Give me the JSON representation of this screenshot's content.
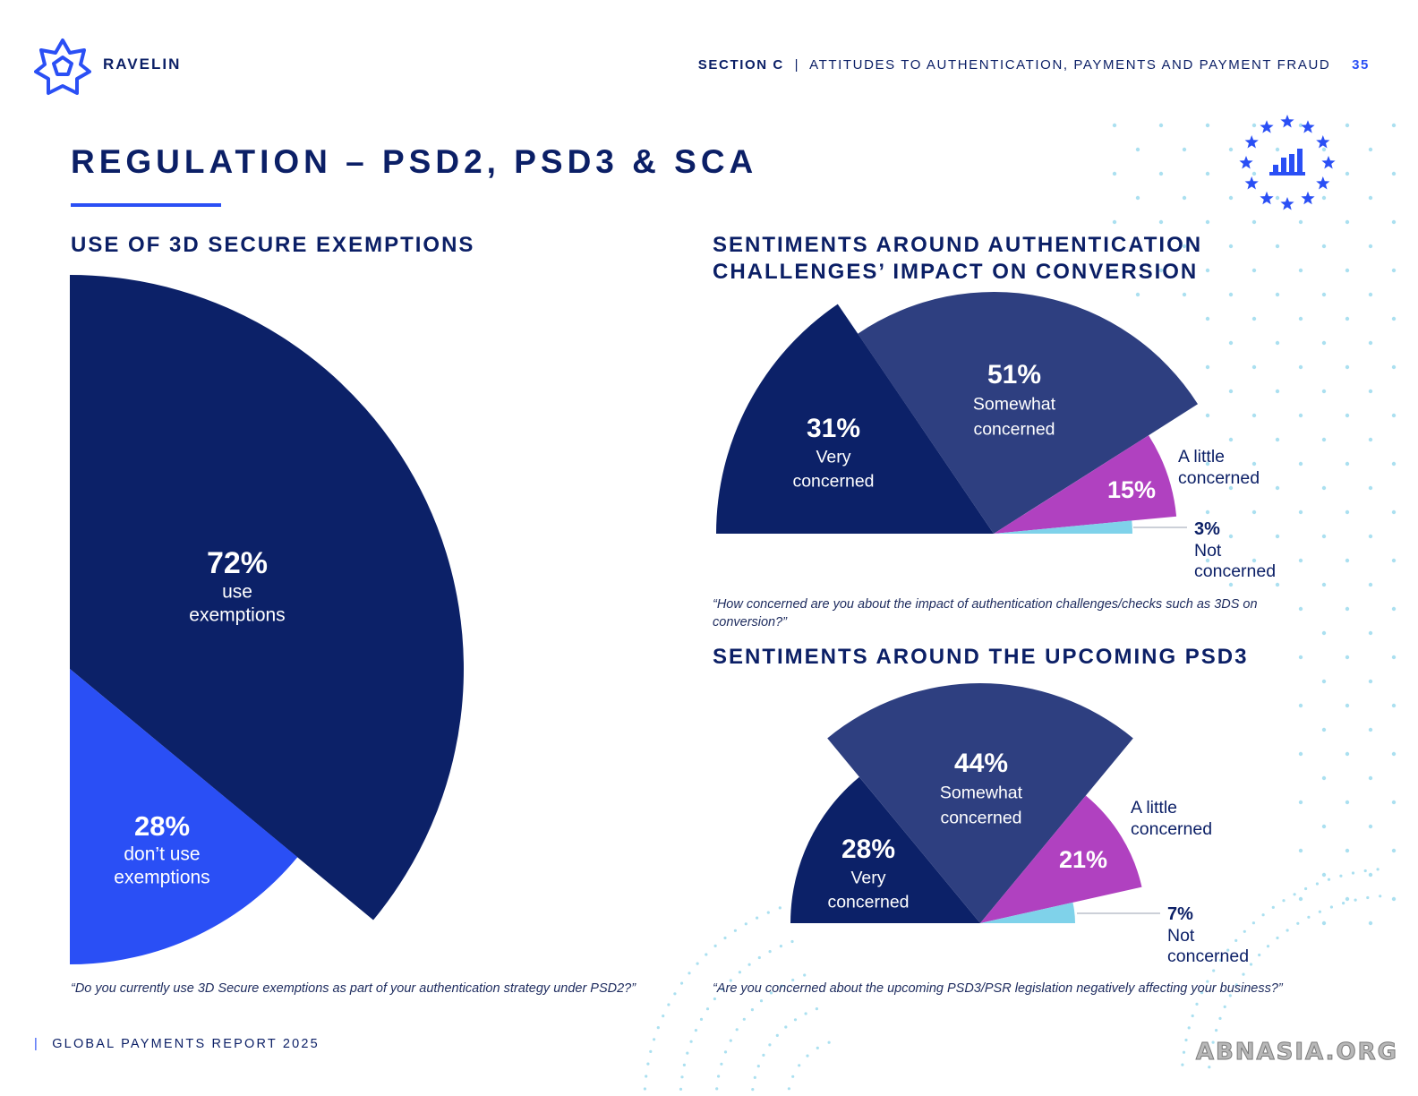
{
  "header": {
    "brand": "RAVELIN",
    "section": "SECTION C",
    "separator": "|",
    "section_title": "ATTITUDES TO AUTHENTICATION, PAYMENTS AND PAYMENT FRAUD",
    "page_number": "35"
  },
  "title": "REGULATION – PSD2, PSD3 & SCA",
  "charts": {
    "exemptions": {
      "heading": "USE OF 3D SECURE EXEMPTIONS",
      "quote": "“Do you currently use 3D Secure exemptions as part of your authentication strategy under PSD2?”"
    },
    "conversion": {
      "heading_line1": "SENTIMENTS AROUND AUTHENTICATION",
      "heading_line2": "CHALLENGES’ IMPACT ON CONVERSION",
      "quote_line1": "“How concerned are you about the impact of authentication challenges/checks such as 3DS on",
      "quote_line2": "conversion?”"
    },
    "psd3": {
      "heading": "SENTIMENTS AROUND THE UPCOMING PSD3",
      "quote": "“Are you concerned about the upcoming PSD3/PSR legislation negatively affecting your business?”"
    }
  },
  "footer": {
    "separator": "|",
    "text": "GLOBAL PAYMENTS REPORT 2025"
  },
  "watermark": "ABNASIA.ORG",
  "colors": {
    "navy": "#0b1f66",
    "dark_blue": "#0c2168",
    "mid_blue": "#2e3f80",
    "bright_blue": "#2a4ff5",
    "purple": "#b041c0",
    "light_blue": "#7fd2ea"
  },
  "chart_data": [
    {
      "type": "pie",
      "title": "USE OF 3D SECURE EXEMPTIONS",
      "slices": [
        {
          "value": 72,
          "pct_label": "72%",
          "label_line1": "use",
          "label_line2": "exemptions",
          "color": "#0c2168"
        },
        {
          "value": 28,
          "pct_label": "28%",
          "label_line1": "don’t use",
          "label_line2": "exemptions",
          "color": "#2a4ff5"
        }
      ]
    },
    {
      "type": "pie",
      "title": "SENTIMENTS AROUND AUTHENTICATION CHALLENGES’ IMPACT ON CONVERSION",
      "slices": [
        {
          "value": 31,
          "pct_label": "31%",
          "label_line1": "Very",
          "label_line2": "concerned",
          "color": "#0c2168"
        },
        {
          "value": 51,
          "pct_label": "51%",
          "label_line1": "Somewhat",
          "label_line2": "concerned",
          "color": "#2e3f80"
        },
        {
          "value": 15,
          "pct_label": "15%",
          "label_line1": "A little",
          "label_line2": "concerned",
          "color": "#b041c0"
        },
        {
          "value": 3,
          "pct_label": "3%",
          "label_line1": "Not",
          "label_line2": "concerned",
          "color": "#7fd2ea"
        }
      ]
    },
    {
      "type": "pie",
      "title": "SENTIMENTS AROUND THE UPCOMING PSD3",
      "slices": [
        {
          "value": 28,
          "pct_label": "28%",
          "label_line1": "Very",
          "label_line2": "concerned",
          "color": "#0c2168"
        },
        {
          "value": 44,
          "pct_label": "44%",
          "label_line1": "Somewhat",
          "label_line2": "concerned",
          "color": "#2e3f80"
        },
        {
          "value": 21,
          "pct_label": "21%",
          "label_line1": "A little",
          "label_line2": "concerned",
          "color": "#b041c0"
        },
        {
          "value": 7,
          "pct_label": "7%",
          "label_line1": "Not",
          "label_line2": "concerned",
          "color": "#7fd2ea"
        }
      ]
    }
  ]
}
